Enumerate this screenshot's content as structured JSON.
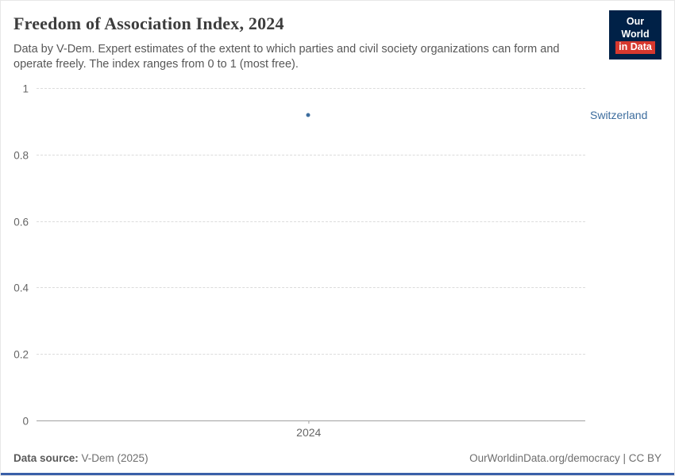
{
  "header": {
    "title": "Freedom of Association Index, 2024",
    "subtitle": "Data by V-Dem. Expert estimates of the extent to which parties and civil society organizations can form and operate freely. The index ranges from 0 to 1 (most free)."
  },
  "logo": {
    "line1": "Our World",
    "line2": "in Data",
    "bg_color": "#002147",
    "accent_color": "#d7382e"
  },
  "chart_data": {
    "type": "scatter",
    "title": "Freedom of Association Index, 2024",
    "subtitle": "Data by V-Dem. Expert estimates of the extent to which parties and civil society organizations can form and operate freely. The index ranges from 0 to 1 (most free).",
    "x_ticks": [
      "2024"
    ],
    "y_ticks": [
      "0",
      "0.2",
      "0.4",
      "0.6",
      "0.8",
      "1"
    ],
    "ylim": [
      0,
      1
    ],
    "grid": "horizontal-dashed",
    "legend_position": "entity-label-right",
    "series": [
      {
        "name": "Switzerland",
        "x": [
          2024
        ],
        "values": [
          0.92
        ],
        "color": "#3d6d9e"
      }
    ]
  },
  "footer": {
    "source_label": "Data source:",
    "source_value": " V-Dem (2025)",
    "right_text": "OurWorldinData.org/democracy | CC BY"
  }
}
